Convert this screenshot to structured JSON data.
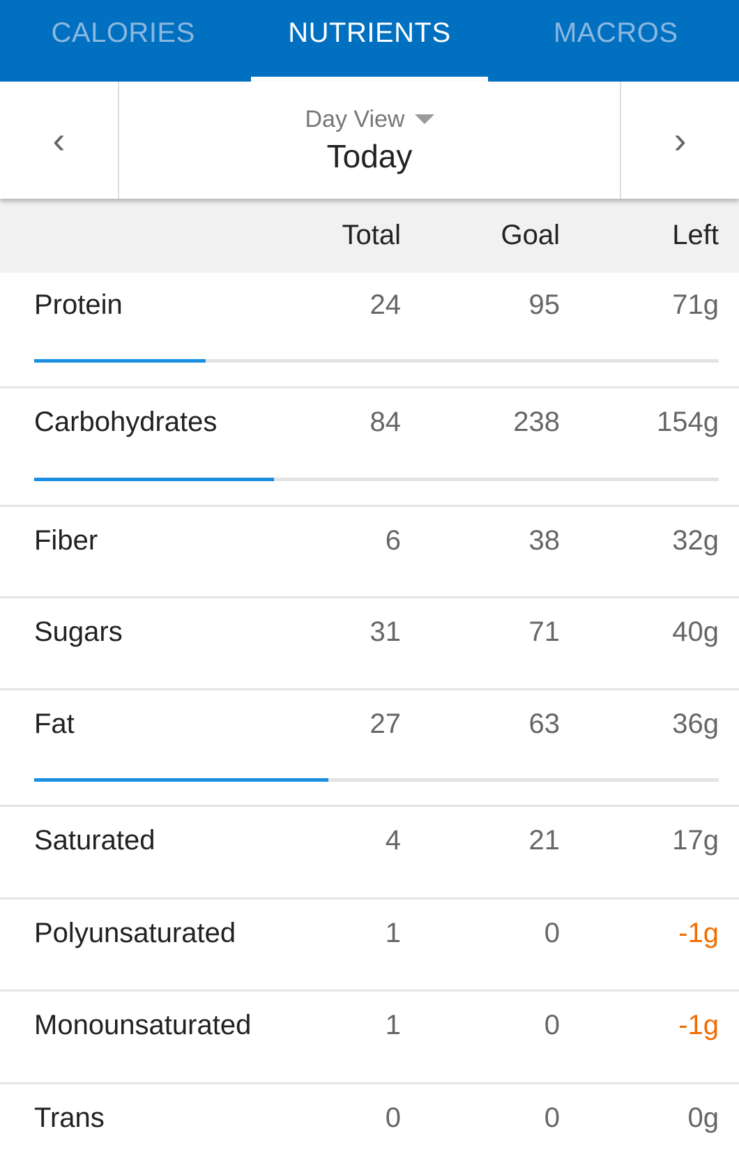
{
  "tabs": [
    {
      "label": "CALORIES",
      "active": false
    },
    {
      "label": "NUTRIENTS",
      "active": true
    },
    {
      "label": "MACROS",
      "active": false
    }
  ],
  "date_nav": {
    "view": "Day View",
    "date": "Today",
    "prev_icon": "chevron-left-icon",
    "next_icon": "chevron-right-icon"
  },
  "columns": {
    "total": "Total",
    "goal": "Goal",
    "left": "Left"
  },
  "colors": {
    "header": "#0270c0",
    "progress": "#1a8ee0",
    "over": "#f26d00"
  },
  "rows": [
    {
      "name": "Protein",
      "total": "24",
      "goal": "95",
      "left": "71g",
      "progress": 0.25
    },
    {
      "name": "Carbohydrates",
      "total": "84",
      "goal": "238",
      "left": "154g",
      "progress": 0.35
    },
    {
      "name": "Fiber",
      "total": "6",
      "goal": "38",
      "left": "32g"
    },
    {
      "name": "Sugars",
      "total": "31",
      "goal": "71",
      "left": "40g"
    },
    {
      "name": "Fat",
      "total": "27",
      "goal": "63",
      "left": "36g",
      "progress": 0.43
    },
    {
      "name": "Saturated",
      "total": "4",
      "goal": "21",
      "left": "17g"
    },
    {
      "name": "Polyunsaturated",
      "total": "1",
      "goal": "0",
      "left": "-1g",
      "over": true
    },
    {
      "name": "Monounsaturated",
      "total": "1",
      "goal": "0",
      "left": "-1g",
      "over": true
    },
    {
      "name": "Trans",
      "total": "0",
      "goal": "0",
      "left": "0g"
    }
  ]
}
